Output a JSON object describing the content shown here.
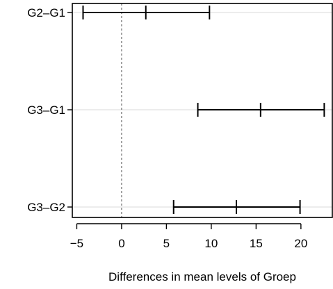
{
  "chart_data": {
    "type": "interval",
    "xlabel": "Differences in mean levels of Groep",
    "xlim": [
      -5.5,
      23.5
    ],
    "xticks": [
      -5,
      0,
      5,
      10,
      15,
      20
    ],
    "xtick_labels": [
      "−5",
      "0",
      "5",
      "10",
      "15",
      "20"
    ],
    "reference_line": 0,
    "grid": "horizontal",
    "intervals": [
      {
        "label": "G2–G1",
        "lower": -4.3,
        "estimate": 2.7,
        "upper": 9.8
      },
      {
        "label": "G3–G1",
        "lower": 8.5,
        "estimate": 15.5,
        "upper": 22.6
      },
      {
        "label": "G3–G2",
        "lower": 5.8,
        "estimate": 12.8,
        "upper": 19.9
      }
    ]
  }
}
